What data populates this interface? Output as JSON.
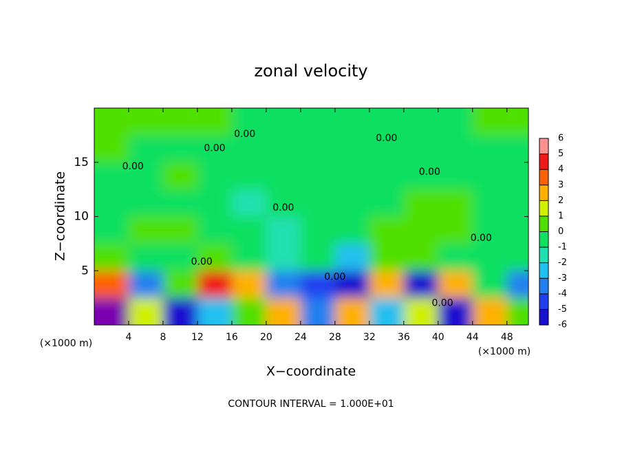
{
  "chart_data": {
    "type": "heatmap",
    "title": "zonal velocity",
    "x_label": "X−coordinate",
    "y_label": "Z−coordinate",
    "x_unit": "(×1000 m)",
    "y_unit": "(×1000 m)",
    "footer": "CONTOUR INTERVAL = 1.000E+01",
    "xlim": [
      0,
      50.5
    ],
    "ylim": [
      0,
      20
    ],
    "xticks": [
      4,
      8,
      12,
      16,
      20,
      24,
      28,
      32,
      36,
      40,
      44,
      48
    ],
    "yticks": [
      5,
      10,
      15
    ],
    "x": [
      2,
      6,
      10,
      14,
      18,
      22,
      26,
      30,
      34,
      38,
      42,
      46,
      50
    ],
    "y": [
      1.25,
      3.75,
      6.25,
      8.75,
      11.25,
      13.75,
      16.25,
      18.75
    ],
    "z": [
      [
        -6,
        2,
        -5,
        -2,
        1,
        3,
        -3,
        3,
        -2,
        2,
        -5,
        3,
        1
      ],
      [
        4,
        -3,
        1,
        5,
        3,
        -3,
        -4,
        -5,
        3,
        -5,
        3,
        0,
        -3
      ],
      [
        1,
        0,
        0,
        1,
        0,
        -1,
        0,
        -2,
        1,
        1,
        0,
        0,
        0
      ],
      [
        0,
        1,
        1,
        0,
        0,
        -1,
        0,
        0,
        1,
        1,
        1,
        0,
        0
      ],
      [
        0,
        0,
        0,
        0,
        -1,
        0,
        0,
        0,
        0,
        1,
        1,
        0,
        0
      ],
      [
        0,
        0,
        1,
        0,
        0,
        0,
        0,
        0,
        0,
        0,
        0,
        0,
        0
      ],
      [
        1,
        0,
        0,
        0,
        0,
        0,
        0,
        0,
        0,
        0,
        0,
        0,
        0
      ],
      [
        1,
        1,
        1,
        1,
        0,
        0,
        0,
        0,
        0,
        0,
        0,
        1,
        1
      ]
    ],
    "clim": [
      -6,
      6
    ],
    "cticks": [
      6,
      5,
      4,
      3,
      2,
      1,
      0,
      -1,
      -2,
      -3,
      -4,
      -5,
      -6
    ],
    "colorscale": [
      "#7a00b0",
      "#1a10d0",
      "#2040f0",
      "#2080f0",
      "#20c0f0",
      "#20e0b0",
      "#10e060",
      "#50e000",
      "#d0f000",
      "#ffb000",
      "#ff6000",
      "#f01818",
      "#ff9090"
    ],
    "contour_labels": [
      {
        "x": 17.5,
        "y": 17.6,
        "label": "0.00"
      },
      {
        "x": 14,
        "y": 16.3,
        "label": "0.00"
      },
      {
        "x": 4.5,
        "y": 14.6,
        "label": "0.00"
      },
      {
        "x": 34,
        "y": 17.2,
        "label": "0.00"
      },
      {
        "x": 39,
        "y": 14.1,
        "label": "0.00"
      },
      {
        "x": 22,
        "y": 10.8,
        "label": "0.00"
      },
      {
        "x": 12.5,
        "y": 5.8,
        "label": "0.00"
      },
      {
        "x": 28,
        "y": 4.4,
        "label": "0.00"
      },
      {
        "x": 40.5,
        "y": 2.0,
        "label": "0.00"
      },
      {
        "x": 45,
        "y": 8.0,
        "label": "0.00"
      }
    ]
  }
}
